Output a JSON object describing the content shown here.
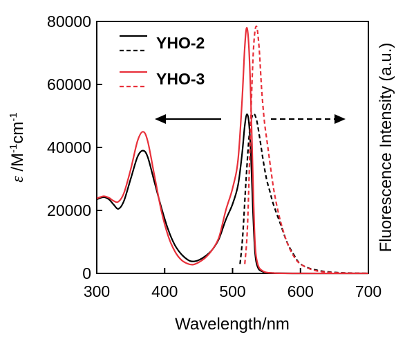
{
  "chart_data": {
    "type": "line",
    "xlabel": "Wavelength/nm",
    "ylabel": {
      "epsilon": "ε",
      "slash_m": " /M",
      "m_sup": "-1",
      "cm": "cm",
      "cm_sup": "-1"
    },
    "y2label": "Fluorescence Intensity (a.u.)",
    "xlim": [
      300,
      700
    ],
    "ylim": [
      0,
      80000
    ],
    "xticks": [
      300,
      400,
      500,
      600,
      700
    ],
    "yticks": [
      0,
      20000,
      40000,
      60000,
      80000
    ],
    "grid": false,
    "legend_position": "top-left",
    "series": [
      {
        "name": "YHO-2",
        "kind": "absorption",
        "color": "#000000",
        "dash": "solid",
        "points": [
          [
            300,
            23500
          ],
          [
            310,
            24200
          ],
          [
            318,
            23500
          ],
          [
            325,
            21800
          ],
          [
            332,
            20500
          ],
          [
            340,
            23000
          ],
          [
            350,
            30000
          ],
          [
            360,
            37000
          ],
          [
            368,
            39000
          ],
          [
            375,
            37000
          ],
          [
            385,
            29000
          ],
          [
            395,
            21000
          ],
          [
            405,
            14000
          ],
          [
            415,
            9000
          ],
          [
            425,
            6000
          ],
          [
            435,
            4200
          ],
          [
            442,
            3800
          ],
          [
            450,
            4200
          ],
          [
            460,
            5500
          ],
          [
            470,
            7500
          ],
          [
            480,
            11000
          ],
          [
            490,
            17000
          ],
          [
            500,
            22000
          ],
          [
            508,
            28000
          ],
          [
            514,
            38000
          ],
          [
            518,
            47000
          ],
          [
            521,
            50500
          ],
          [
            524,
            48000
          ],
          [
            527,
            38000
          ],
          [
            530,
            20000
          ],
          [
            533,
            7000
          ],
          [
            537,
            2000
          ],
          [
            545,
            500
          ],
          [
            560,
            100
          ],
          [
            600,
            0
          ],
          [
            700,
            0
          ]
        ]
      },
      {
        "name": "YHO-2",
        "kind": "fluorescence",
        "color": "#000000",
        "dash": "dashed",
        "points": [
          [
            511,
            3000
          ],
          [
            515,
            12000
          ],
          [
            520,
            30000
          ],
          [
            525,
            45000
          ],
          [
            530,
            50500
          ],
          [
            535,
            49000
          ],
          [
            540,
            43000
          ],
          [
            545,
            36000
          ],
          [
            550,
            30000
          ],
          [
            555,
            26000
          ],
          [
            560,
            22000
          ],
          [
            570,
            16000
          ],
          [
            580,
            10000
          ],
          [
            590,
            6000
          ],
          [
            600,
            3000
          ],
          [
            620,
            1200
          ],
          [
            650,
            300
          ],
          [
            700,
            0
          ]
        ]
      },
      {
        "name": "YHO-3",
        "kind": "absorption",
        "color": "#e8303a",
        "dash": "solid",
        "points": [
          [
            300,
            23800
          ],
          [
            310,
            24500
          ],
          [
            318,
            24000
          ],
          [
            325,
            23000
          ],
          [
            332,
            22800
          ],
          [
            340,
            25500
          ],
          [
            350,
            33000
          ],
          [
            360,
            42000
          ],
          [
            368,
            45000
          ],
          [
            375,
            42000
          ],
          [
            385,
            31000
          ],
          [
            395,
            20000
          ],
          [
            405,
            12000
          ],
          [
            415,
            7000
          ],
          [
            425,
            4200
          ],
          [
            435,
            3000
          ],
          [
            442,
            2800
          ],
          [
            450,
            3500
          ],
          [
            460,
            5000
          ],
          [
            470,
            7500
          ],
          [
            480,
            11500
          ],
          [
            490,
            20000
          ],
          [
            500,
            27000
          ],
          [
            508,
            36000
          ],
          [
            514,
            55000
          ],
          [
            518,
            72000
          ],
          [
            521,
            78000
          ],
          [
            524,
            72000
          ],
          [
            527,
            55000
          ],
          [
            530,
            30000
          ],
          [
            533,
            10000
          ],
          [
            537,
            3000
          ],
          [
            545,
            700
          ],
          [
            560,
            100
          ],
          [
            600,
            0
          ],
          [
            700,
            0
          ]
        ]
      },
      {
        "name": "YHO-3",
        "kind": "fluorescence",
        "color": "#e8303a",
        "dash": "dashed",
        "points": [
          [
            518,
            3000
          ],
          [
            522,
            15000
          ],
          [
            527,
            50000
          ],
          [
            531,
            72000
          ],
          [
            535,
            78500
          ],
          [
            539,
            72000
          ],
          [
            543,
            58000
          ],
          [
            547,
            48000
          ],
          [
            552,
            40000
          ],
          [
            557,
            32000
          ],
          [
            562,
            25000
          ],
          [
            570,
            17000
          ],
          [
            580,
            10000
          ],
          [
            590,
            5500
          ],
          [
            600,
            3000
          ],
          [
            620,
            1000
          ],
          [
            650,
            200
          ],
          [
            700,
            0
          ]
        ]
      }
    ]
  }
}
